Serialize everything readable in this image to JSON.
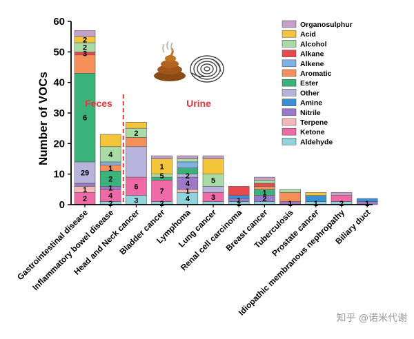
{
  "chart_data": {
    "type": "bar",
    "stacked": true,
    "title": "",
    "xlabel": "",
    "ylabel": "Number of VOCs",
    "ylim": [
      0,
      60
    ],
    "yticks": [
      0,
      10,
      20,
      30,
      40,
      50,
      60
    ],
    "grid": false,
    "legend_position": "top-right",
    "categories": [
      "Gastrointestinal disease",
      "Inflammatory bowel disease",
      "Head and Neck cancer",
      "Bladder cancer",
      "Lymphoma",
      "Lung cancer",
      "Renal cell carcinoma",
      "Breast cancer",
      "Tuberculosis",
      "Prostate cancer",
      "Idiopathic membranous nephropathy",
      "Biliary duct"
    ],
    "series": [
      {
        "name": "Aldehyde",
        "color": "#8fd4dc",
        "values": [
          0,
          1,
          3,
          1,
          4,
          1,
          1,
          1,
          0,
          1,
          1,
          0
        ]
      },
      {
        "name": "Ketone",
        "color": "#ee6aa7",
        "values": [
          4,
          4,
          6,
          7,
          0,
          3,
          0,
          0,
          0,
          0,
          2,
          0
        ]
      },
      {
        "name": "Terpene",
        "color": "#f4b8b8",
        "values": [
          2,
          0,
          0,
          0,
          1,
          0,
          0,
          0,
          0,
          0,
          0,
          0
        ]
      },
      {
        "name": "Nitrile",
        "color": "#9b78c8",
        "values": [
          1,
          1,
          0,
          0,
          4,
          0,
          1,
          2,
          1,
          0,
          0,
          1
        ]
      },
      {
        "name": "Amine",
        "color": "#3b8fd4",
        "values": [
          0,
          0,
          0,
          0,
          0,
          0,
          1,
          0,
          0,
          2,
          0,
          1
        ]
      },
      {
        "name": "Other",
        "color": "#b7b3dc",
        "values": [
          7,
          0,
          10,
          0,
          1,
          2,
          0,
          0,
          0,
          0,
          0,
          0
        ]
      },
      {
        "name": "Ester",
        "color": "#3ab37a",
        "values": [
          29,
          5,
          0,
          1,
          2,
          0,
          0,
          2,
          0,
          0,
          0,
          0
        ]
      },
      {
        "name": "Aromatic",
        "color": "#f5905a",
        "values": [
          6,
          2,
          3,
          0,
          0,
          0,
          0,
          1,
          3,
          0,
          0,
          0
        ]
      },
      {
        "name": "Alkene",
        "color": "#7fb2e5",
        "values": [
          0,
          1,
          0,
          0,
          2,
          0,
          0,
          0,
          0,
          0,
          0,
          0
        ]
      },
      {
        "name": "Alkane",
        "color": "#e8494f",
        "values": [
          1,
          0,
          0,
          0,
          0,
          0,
          3,
          1,
          0,
          0,
          0,
          0
        ]
      },
      {
        "name": "Alcohol",
        "color": "#a9dba4",
        "values": [
          3,
          5,
          3,
          1,
          1,
          4,
          0,
          1,
          1,
          0,
          0,
          0
        ]
      },
      {
        "name": "Acid",
        "color": "#f4c53a",
        "values": [
          2,
          4,
          2,
          5,
          0,
          5,
          0,
          0,
          0,
          1,
          0,
          0
        ]
      },
      {
        "name": "Organosulphur",
        "color": "#c6a0c6",
        "values": [
          2,
          0,
          0,
          1,
          1,
          1,
          0,
          1,
          0,
          0,
          1,
          0
        ]
      }
    ],
    "segment_labels": [
      [
        "4",
        "2",
        "1",
        "",
        "7",
        "29",
        "6",
        "",
        "1",
        "3",
        "2",
        "2"
      ],
      [
        "2",
        "4",
        "",
        "1",
        "",
        "5",
        "2",
        "1",
        "",
        "5",
        "4",
        ""
      ],
      [
        "3",
        "6",
        "",
        "",
        "10",
        "",
        "3",
        "",
        "",
        "3",
        "2",
        ""
      ],
      [
        "2",
        "7",
        "",
        "",
        "",
        "1",
        "",
        "",
        "",
        "1",
        "5",
        "1"
      ],
      [
        "4",
        "",
        "1",
        "4",
        "1",
        "2",
        "",
        "1",
        "",
        "1",
        "",
        "1"
      ],
      [
        "",
        "3",
        "",
        "",
        "2",
        "",
        "",
        "",
        "",
        "4",
        "5",
        ""
      ],
      [
        "1",
        "",
        "1",
        "1",
        "",
        "",
        "",
        "",
        "3",
        "",
        "",
        ""
      ],
      [
        "",
        "",
        "",
        "2",
        "",
        "2",
        "1",
        "",
        "1",
        "",
        "",
        "1"
      ],
      [
        "",
        "",
        "",
        "1",
        "",
        "",
        "3",
        "",
        "1",
        "",
        "",
        ""
      ],
      [
        "1",
        "",
        "",
        "",
        "",
        "",
        "",
        "",
        "",
        "",
        "1",
        ""
      ],
      [
        "2",
        "",
        "",
        "",
        "",
        "",
        "",
        "",
        "",
        "",
        "1",
        ""
      ],
      [
        "",
        "",
        "",
        "1",
        "",
        "",
        "",
        "",
        "",
        "",
        "",
        ""
      ]
    ],
    "group_labels": [
      "Feces",
      "Urine"
    ],
    "group_divider_after": 1,
    "axis_color": "#000000",
    "group_label_color": "#e8353b"
  },
  "watermark": "知乎 @诺米代谢"
}
